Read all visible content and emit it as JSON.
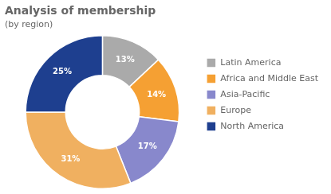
{
  "chart_data": {
    "type": "doughnut",
    "title": "Analysis of membership",
    "subtitle": "(by region)",
    "categories": [
      "Latin America",
      "Africa and Middle East",
      "Asia-Pacific",
      "Europe",
      "North America"
    ],
    "values": [
      13,
      14,
      17,
      31,
      25
    ],
    "value_labels": [
      "13%",
      "14%",
      "17%",
      "31%",
      "25%"
    ],
    "colors": [
      "#aaaaaa",
      "#f5a033",
      "#8888cc",
      "#f0b060",
      "#1e3f8f"
    ],
    "data_labels": true,
    "legend": "right"
  }
}
